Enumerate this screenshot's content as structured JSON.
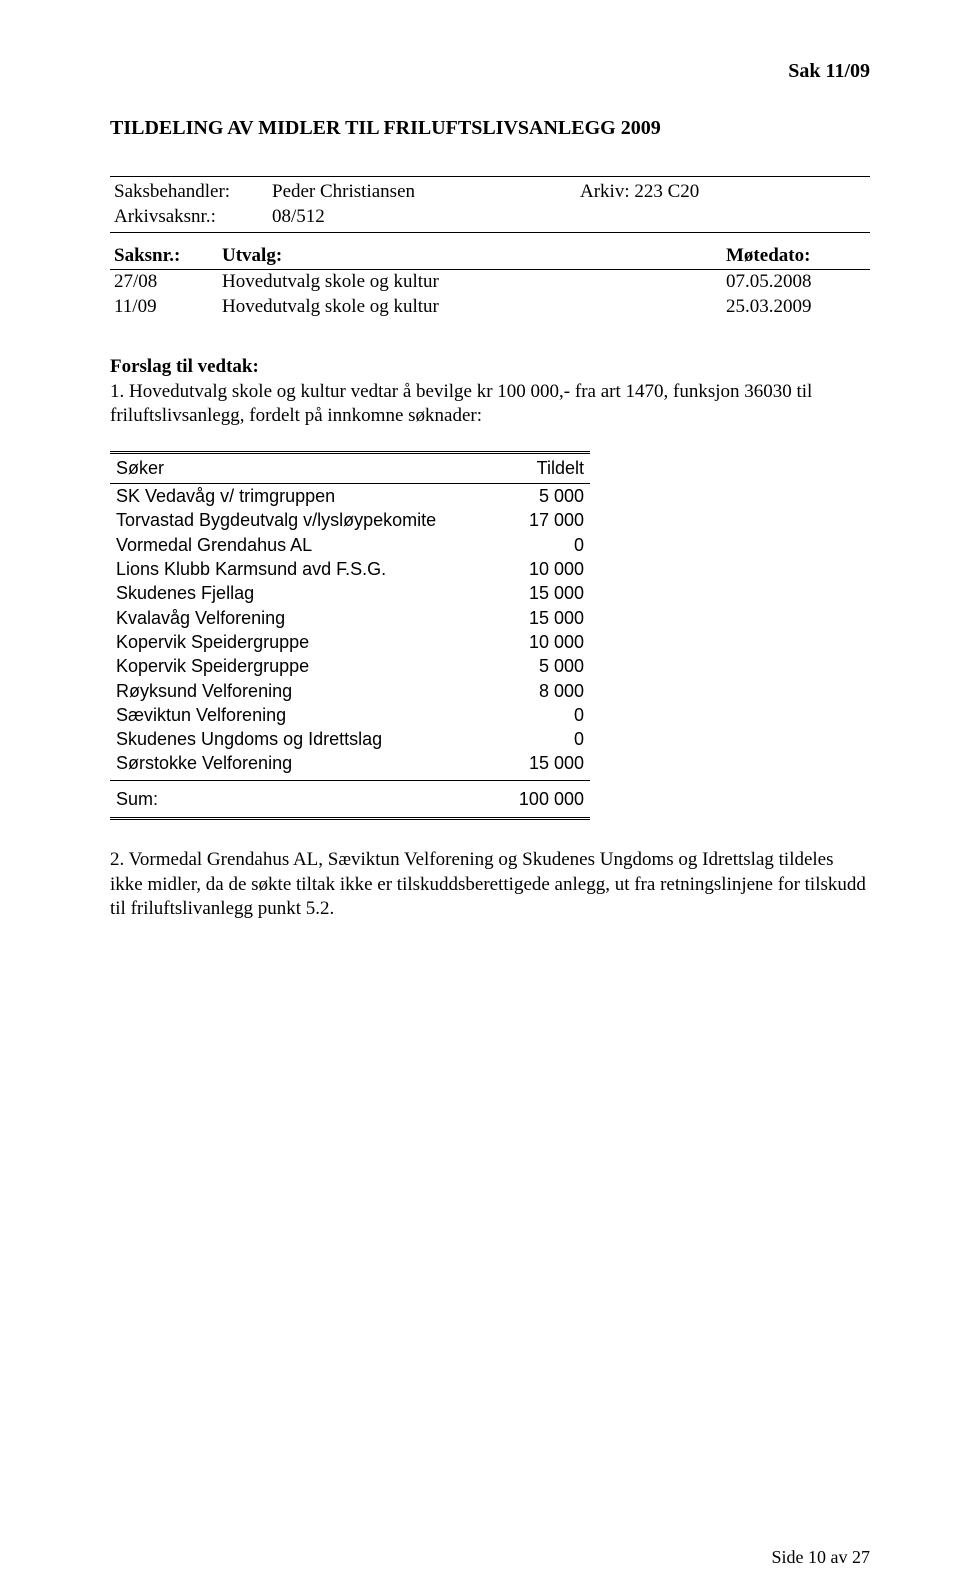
{
  "sak_header": "Sak  11/09",
  "title": "TILDELING AV MIDLER TIL FRILUFTSLIVSANLEGG 2009",
  "meta": {
    "saksbehandler_label": "Saksbehandler:",
    "saksbehandler": "Peder Christiansen",
    "arkiv_label": "Arkiv: 223 C20",
    "arkivsaksnr_label": "Arkivsaksnr.:",
    "arkivsaksnr": "08/512"
  },
  "utvalg": {
    "saksnr_header": "Saksnr.:",
    "utvalg_header": "Utvalg:",
    "motedato_header": "Møtedato:",
    "rows": [
      {
        "saksnr": "27/08",
        "body": "Hovedutvalg skole og kultur",
        "date": "07.05.2008"
      },
      {
        "saksnr": "11/09",
        "body": "Hovedutvalg skole og kultur",
        "date": "25.03.2009"
      }
    ]
  },
  "forslag_head": "Forslag til vedtak:",
  "forslag_text": "1. Hovedutvalg skole og kultur vedtar å bevilge kr 100 000,- fra art 1470, funksjon 36030 til friluftslivsanlegg, fordelt på innkomne søknader:",
  "alloc": {
    "col_soker": "Søker",
    "col_tildelt": "Tildelt",
    "rows": [
      {
        "name": "SK Vedavåg v/ trimgruppen",
        "amount": "5 000"
      },
      {
        "name": "Torvastad Bygdeutvalg v/lysløypekomite",
        "amount": "17 000"
      },
      {
        "name": "Vormedal Grendahus AL",
        "amount": "0"
      },
      {
        "name": "Lions Klubb Karmsund avd F.S.G.",
        "amount": "10 000"
      },
      {
        "name": "Skudenes Fjellag",
        "amount": "15 000"
      },
      {
        "name": "Kvalavåg Velforening",
        "amount": "15 000"
      },
      {
        "name": "Kopervik Speidergruppe",
        "amount": "10 000"
      },
      {
        "name": "Kopervik Speidergruppe",
        "amount": "5 000"
      },
      {
        "name": "Røyksund Velforening",
        "amount": "8 000"
      },
      {
        "name": "Sæviktun Velforening",
        "amount": "0"
      },
      {
        "name": "Skudenes Ungdoms og Idrettslag",
        "amount": "0"
      },
      {
        "name": "Sørstokke Velforening",
        "amount": "15 000"
      }
    ],
    "sum_label": "Sum:",
    "sum_value": "100 000"
  },
  "second_para": "2. Vormedal Grendahus AL, Sæviktun Velforening og Skudenes Ungdoms og Idrettslag tildeles ikke midler, da de søkte tiltak ikke er tilskuddsberettigede anlegg, ut fra retningslinjene for tilskudd til friluftslivanlegg punkt 5.2.",
  "footer": "Side 10 av 27"
}
